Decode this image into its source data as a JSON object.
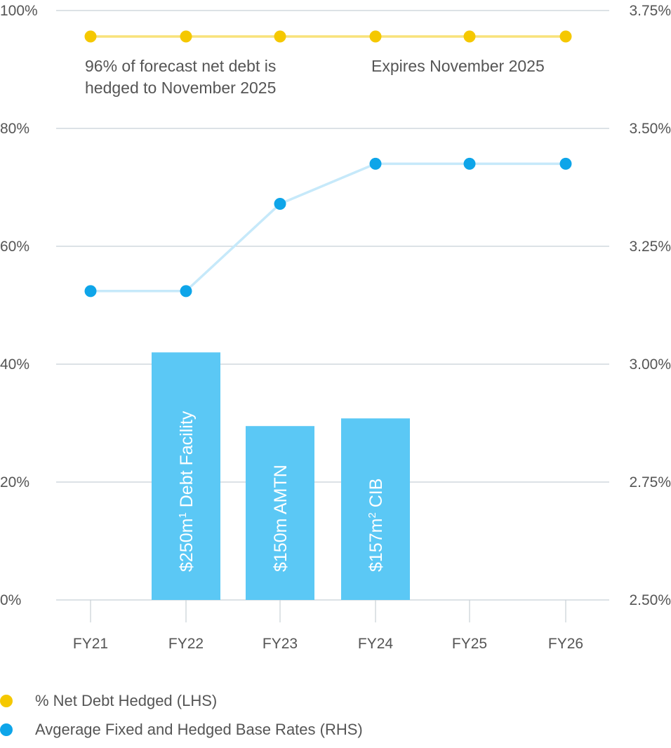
{
  "chart_data": {
    "type": "bar",
    "categories": [
      "FY21",
      "FY22",
      "FY23",
      "FY24",
      "FY25",
      "FY26"
    ],
    "bars": [
      {
        "category": "FY22",
        "value": 42,
        "label": "$250m",
        "sup": "1",
        "suffix": " Debt Facility"
      },
      {
        "category": "FY23",
        "value": 29.5,
        "label": "$150m AMTN",
        "sup": "",
        "suffix": ""
      },
      {
        "category": "FY24",
        "value": 30.8,
        "label": "$157m",
        "sup": "2",
        "suffix": " CIB"
      }
    ],
    "series": [
      {
        "name": "% Net Debt Hedged (LHS)",
        "axis": "left",
        "color": "#F5C800",
        "line_color": "#F8E27A",
        "values": [
          95.6,
          95.6,
          95.6,
          95.6,
          95.6,
          95.6
        ]
      },
      {
        "name": "Avgerage Fixed and Hedged Base Rates (RHS)",
        "axis": "right",
        "color": "#0EA5E9",
        "line_color": "#C6E9FA",
        "values": [
          3.155,
          3.155,
          3.34,
          3.425,
          3.425,
          3.425
        ]
      }
    ],
    "bar_color": "#5BC8F5",
    "y_left": {
      "ticks": [
        "100%",
        "80%",
        "60%",
        "40%",
        "20%",
        "0%"
      ],
      "range": [
        0,
        100
      ]
    },
    "y_right": {
      "ticks": [
        "3.75%",
        "3.50%",
        "3.25%",
        "3.00%",
        "2.75%",
        "2.50%"
      ],
      "range": [
        2.5,
        3.75
      ]
    },
    "annotations": [
      {
        "text": [
          "96% of forecast net debt is",
          "hedged to November 2025"
        ]
      },
      {
        "text": [
          "Expires November 2025"
        ]
      }
    ],
    "grid": true,
    "legend_position": "bottom-left"
  }
}
